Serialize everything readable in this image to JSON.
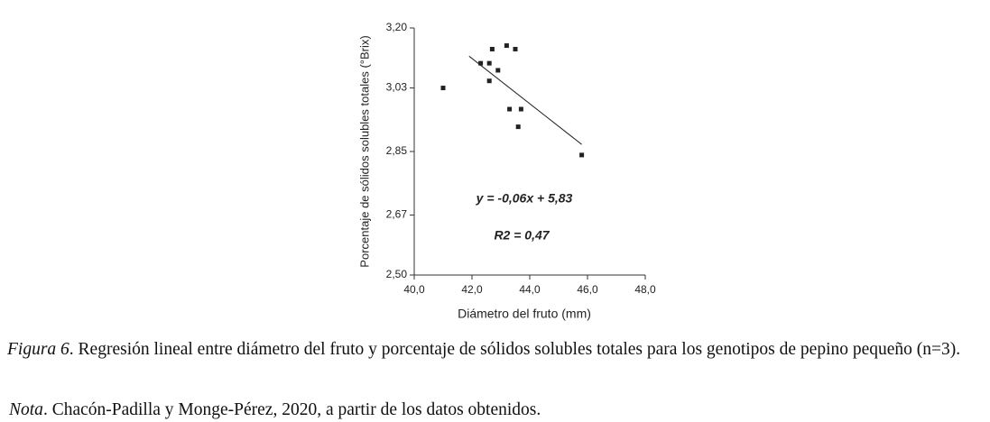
{
  "chart_data": {
    "type": "scatter",
    "x": [
      41.0,
      42.3,
      42.6,
      42.7,
      42.6,
      42.9,
      43.2,
      43.5,
      43.3,
      43.7,
      43.6,
      45.8
    ],
    "values": [
      3.03,
      3.1,
      3.1,
      3.14,
      3.05,
      3.08,
      3.15,
      3.14,
      2.97,
      2.97,
      2.92,
      2.84
    ],
    "color": "#222222",
    "trendline": {
      "x": [
        41.9,
        45.8
      ],
      "values": [
        3.12,
        2.87
      ],
      "color": "#222222"
    },
    "xlim": [
      40,
      48
    ],
    "ylim": [
      2.5,
      3.2
    ],
    "xticks": [
      {
        "value": 40,
        "label": "40,0"
      },
      {
        "value": 42,
        "label": "42,0"
      },
      {
        "value": 44,
        "label": "44,0"
      },
      {
        "value": 46,
        "label": "46,0"
      },
      {
        "value": 48,
        "label": "48,0"
      }
    ],
    "yticks": [
      {
        "value": 2.5,
        "label": "2,50"
      },
      {
        "value": 2.67,
        "label": "2,67"
      },
      {
        "value": 2.85,
        "label": "2,85"
      },
      {
        "value": 3.03,
        "label": "3,03"
      },
      {
        "value": 3.2,
        "label": "3,20"
      }
    ],
    "x_label": "Diámetro del fruto (mm)",
    "y_label": "Porcentaje de sólidos solubles totales (°Brix)",
    "annotations": [
      "y = -0,06x + 5,83",
      "R2 = 0,47"
    ]
  },
  "caption": {
    "label": "Figura 6",
    "text": ". Regresión lineal entre diámetro del fruto y porcentaje de sólidos solubles totales para los genotipos de pepino pequeño (n=3)."
  },
  "note": {
    "label": "Nota",
    "text": ". Chacón-Padilla y Monge-Pérez, 2020, a partir de los datos obtenidos."
  }
}
